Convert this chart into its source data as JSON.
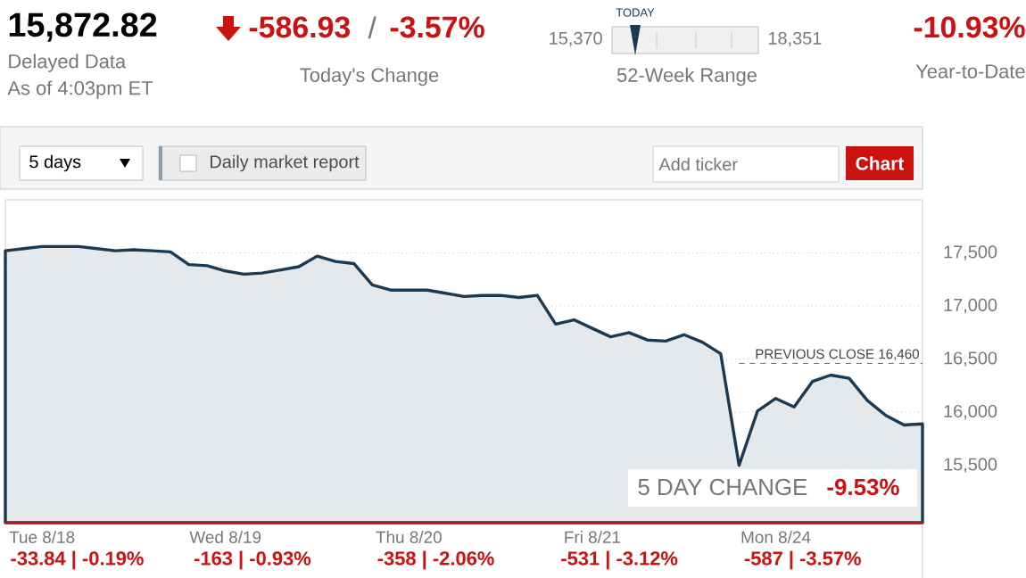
{
  "chart_data": {
    "type": "area",
    "title": "15,872.82",
    "annotations": [
      "Delayed Data",
      "As of 4:03pm ET",
      "-586.93",
      "/",
      "-3.57%",
      "Today's Change",
      "TODAY",
      "15,370",
      "18,351",
      "52-Week Range",
      "-10.93%",
      "Year-to-Date",
      "5 days",
      "Daily market report",
      "Add ticker",
      "Chart",
      "5 DAY CHANGE",
      "-9.53%",
      "-33.84 | -0.19%",
      "-163 | -0.93%",
      "-358 | -2.06%",
      "-531 | -3.12%",
      "-587 | -3.57%"
    ],
    "categories": [
      null,
      null,
      "Tue 8/18",
      null,
      null,
      null,
      null,
      null,
      null,
      null,
      null,
      null,
      "Wed 8/19",
      null,
      null,
      null,
      null,
      null,
      null,
      null,
      null,
      null,
      "Thu 8/20",
      null,
      null,
      null,
      null,
      null,
      null,
      null,
      null,
      null,
      "Fri 8/21",
      null,
      null,
      null,
      null,
      null,
      null,
      null,
      null,
      null,
      "Mon 8/24",
      null,
      null,
      null,
      null,
      null,
      null,
      null,
      null
    ],
    "series": [
      {
        "color": "#1b3a52",
        "values": [
          17520,
          17540,
          17560,
          17560,
          17560,
          17540,
          17520,
          17530,
          17520,
          17510,
          17390,
          17380,
          17330,
          17300,
          17310,
          17340,
          17370,
          17470,
          17420,
          17400,
          17200,
          17150,
          17150,
          17150,
          17120,
          17090,
          17100,
          17100,
          17080,
          17100,
          16830,
          16870,
          16790,
          16710,
          16750,
          16680,
          16670,
          16730,
          16660,
          16550,
          15500,
          16010,
          16130,
          16050,
          16290,
          16350,
          16320,
          16110,
          15970,
          15880,
          15890
        ]
      }
    ],
    "ylim": [
      14960,
      18000
    ],
    "yticks": [
      {
        "value": 15500,
        "label": "15,500"
      },
      {
        "value": 16000,
        "label": "16,000"
      },
      {
        "value": 16500,
        "label": "16,500"
      },
      {
        "value": 17000,
        "label": "17,000"
      },
      {
        "value": 17500,
        "label": "17,500"
      }
    ],
    "ref_lines": [
      {
        "axis": "y",
        "value": 16460,
        "label": "PREVIOUS CLOSE 16,460",
        "color": "#444444",
        "line_style": "dashed"
      }
    ],
    "grid": "y"
  }
}
